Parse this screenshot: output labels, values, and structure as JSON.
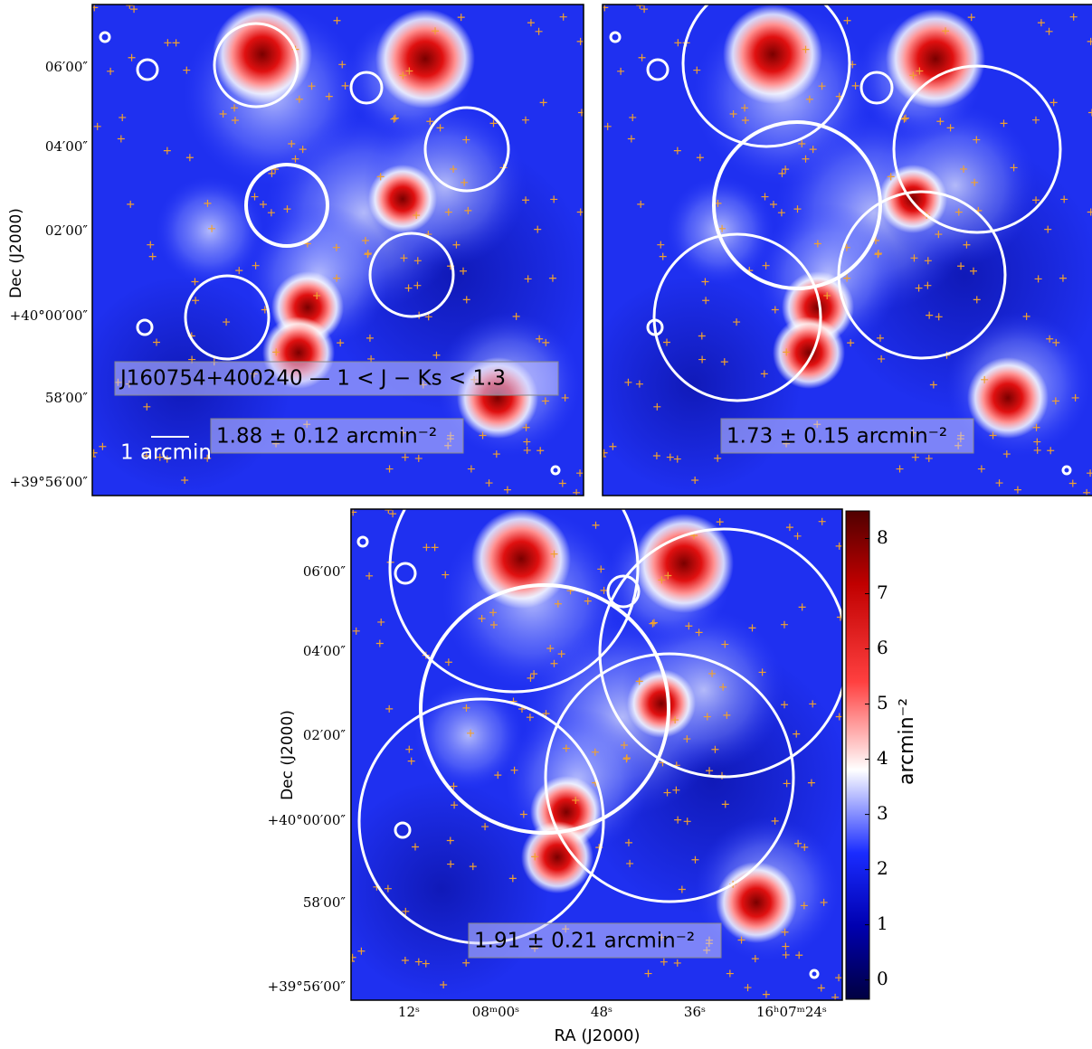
{
  "figure": {
    "y_axis_label": "Dec (J2000)",
    "x_axis_label": "RA (J2000)",
    "dec_ticks": [
      "06′00″",
      "04′00″",
      "02′00″",
      "+40°00′00″",
      "58′00″",
      "+39°56′00″"
    ],
    "ra_ticks": [
      "12ˢ",
      "08ᵐ00ˢ",
      "48ˢ",
      "36ˢ",
      "16ʰ07ᵐ24ˢ"
    ],
    "panels": [
      {
        "field_label": "J160754+400240 — 1 < J − Ks < 1.3",
        "scale_label": "1 arcmin",
        "density_label": "1.88 ± 0.12 arcmin⁻²"
      },
      {
        "density_label": "1.73 ± 0.15 arcmin⁻²"
      },
      {
        "density_label": "1.91 ± 0.21 arcmin⁻²"
      }
    ],
    "colorbar": {
      "label": "arcmin⁻²",
      "range": [
        -0.35,
        8.5
      ],
      "ticks": [
        0,
        1,
        2,
        3,
        4,
        5,
        6,
        7,
        8
      ]
    }
  }
}
